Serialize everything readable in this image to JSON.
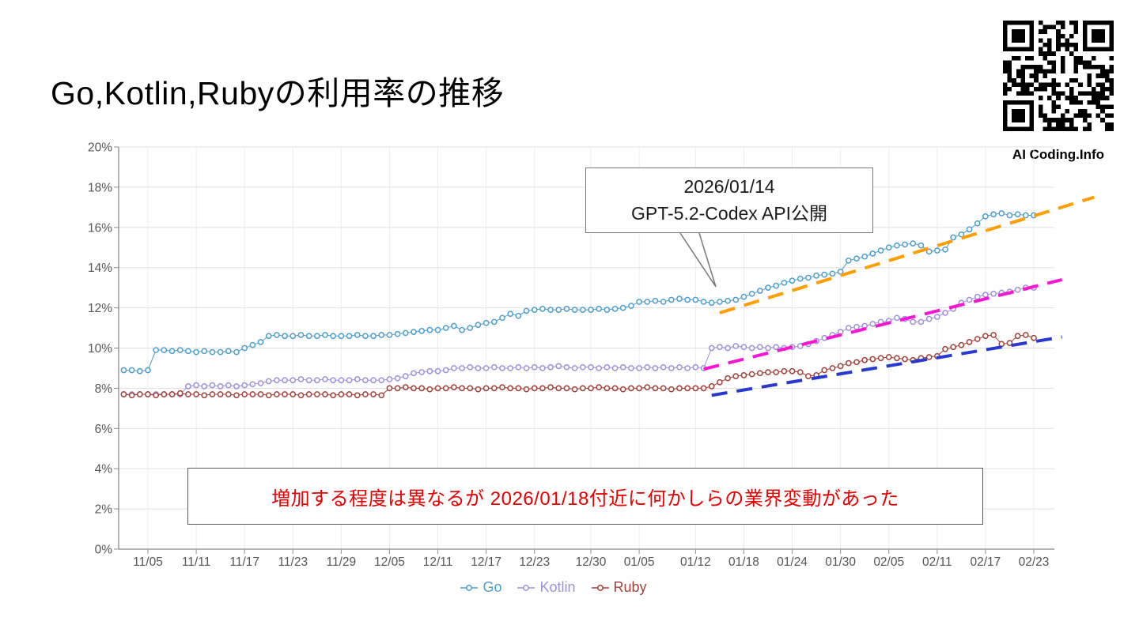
{
  "slide": {
    "title": "Go,Kotlin,Rubyの利用率の推移",
    "qr_caption": "AI Coding.Info"
  },
  "callout": {
    "line1": "2026/01/14",
    "line2": "GPT-5.2-Codex API公開"
  },
  "banner": {
    "text": "増加する程度は異なるが 2026/01/18付近に何かしらの業界変動があった",
    "color": "#e60000"
  },
  "chart_data": {
    "type": "line",
    "title": "",
    "xlabel": "",
    "ylabel": "",
    "ylim": [
      0,
      20
    ],
    "y_ticks": [
      0,
      2,
      4,
      6,
      8,
      10,
      12,
      14,
      16,
      18,
      20
    ],
    "y_tick_suffix": "%",
    "grid": true,
    "legend_position": "bottom",
    "x_unit": "day-index (day 0 = 11/02)",
    "x_tick_labels": [
      "11/05",
      "11/11",
      "11/17",
      "11/23",
      "11/29",
      "12/05",
      "12/11",
      "12/17",
      "12/23",
      "12/30",
      "01/05",
      "01/12",
      "01/18",
      "01/24",
      "01/30",
      "02/05",
      "02/11",
      "02/17",
      "02/23"
    ],
    "x_tick_days": [
      3,
      9,
      15,
      21,
      27,
      33,
      39,
      45,
      51,
      58,
      64,
      71,
      77,
      83,
      89,
      95,
      101,
      107,
      113
    ],
    "series": [
      {
        "name": "Go",
        "color": "#4E9ECE",
        "values": [
          8.9,
          8.9,
          8.85,
          8.9,
          9.9,
          9.9,
          9.85,
          9.9,
          9.85,
          9.8,
          9.85,
          9.8,
          9.8,
          9.85,
          9.8,
          10.0,
          10.15,
          10.3,
          10.6,
          10.65,
          10.6,
          10.6,
          10.65,
          10.6,
          10.6,
          10.65,
          10.6,
          10.6,
          10.6,
          10.65,
          10.6,
          10.6,
          10.65,
          10.65,
          10.7,
          10.75,
          10.8,
          10.85,
          10.9,
          10.9,
          11.0,
          11.1,
          10.9,
          11.0,
          11.15,
          11.25,
          11.3,
          11.5,
          11.7,
          11.6,
          11.85,
          11.9,
          11.95,
          11.9,
          11.9,
          11.95,
          11.9,
          11.9,
          11.9,
          11.95,
          11.9,
          11.95,
          12.0,
          12.1,
          12.3,
          12.3,
          12.35,
          12.3,
          12.4,
          12.45,
          12.4,
          12.4,
          12.3,
          12.25,
          12.3,
          12.35,
          12.4,
          12.55,
          12.7,
          12.85,
          13.0,
          13.1,
          13.25,
          13.35,
          13.45,
          13.5,
          13.6,
          13.65,
          13.7,
          13.8,
          14.35,
          14.45,
          14.55,
          14.7,
          14.85,
          15.0,
          15.1,
          15.15,
          15.2,
          15.1,
          14.8,
          14.85,
          14.9,
          15.5,
          15.65,
          15.9,
          16.2,
          16.55,
          16.65,
          16.7,
          16.6,
          16.65,
          16.6,
          16.6
        ]
      },
      {
        "name": "Kotlin",
        "color": "#A08FDC",
        "values": [
          7.7,
          7.7,
          7.7,
          7.7,
          7.7,
          7.7,
          7.7,
          7.7,
          8.1,
          8.15,
          8.1,
          8.15,
          8.1,
          8.15,
          8.1,
          8.15,
          8.2,
          8.25,
          8.35,
          8.4,
          8.4,
          8.4,
          8.45,
          8.4,
          8.4,
          8.45,
          8.4,
          8.4,
          8.4,
          8.45,
          8.4,
          8.4,
          8.4,
          8.45,
          8.5,
          8.6,
          8.75,
          8.8,
          8.85,
          8.85,
          8.9,
          9.0,
          9.0,
          9.05,
          9.0,
          9.0,
          9.05,
          9.0,
          9.0,
          9.05,
          9.0,
          9.05,
          9.0,
          9.05,
          9.1,
          9.05,
          9.0,
          9.05,
          9.05,
          9.0,
          9.05,
          9.0,
          9.05,
          9.0,
          9.0,
          9.05,
          9.0,
          9.05,
          9.0,
          9.05,
          9.0,
          9.05,
          9.0,
          10.0,
          10.05,
          10.0,
          10.1,
          10.05,
          10.0,
          10.05,
          10.0,
          10.05,
          10.0,
          10.05,
          10.1,
          10.2,
          10.35,
          10.5,
          10.65,
          10.8,
          11.0,
          11.05,
          11.1,
          11.2,
          11.3,
          11.35,
          11.5,
          11.45,
          11.3,
          11.3,
          11.45,
          11.55,
          11.75,
          11.95,
          12.25,
          12.4,
          12.55,
          12.65,
          12.7,
          12.75,
          12.8,
          12.9,
          13.0,
          13.0
        ]
      },
      {
        "name": "Ruby",
        "color": "#A04038",
        "values": [
          7.7,
          7.65,
          7.7,
          7.7,
          7.65,
          7.7,
          7.7,
          7.75,
          7.7,
          7.7,
          7.65,
          7.7,
          7.7,
          7.7,
          7.65,
          7.7,
          7.7,
          7.7,
          7.65,
          7.7,
          7.7,
          7.7,
          7.65,
          7.7,
          7.7,
          7.7,
          7.65,
          7.7,
          7.7,
          7.65,
          7.7,
          7.7,
          7.65,
          8.0,
          8.0,
          8.05,
          8.0,
          8.0,
          7.95,
          8.0,
          8.0,
          8.05,
          8.0,
          8.0,
          7.95,
          8.0,
          8.0,
          8.05,
          8.0,
          8.0,
          7.95,
          8.0,
          8.0,
          8.05,
          8.0,
          8.0,
          7.95,
          8.0,
          8.0,
          8.05,
          8.0,
          8.0,
          7.95,
          8.0,
          8.0,
          8.05,
          8.0,
          8.0,
          7.95,
          8.0,
          8.0,
          8.0,
          8.0,
          8.1,
          8.3,
          8.5,
          8.6,
          8.65,
          8.7,
          8.75,
          8.8,
          8.8,
          8.85,
          8.85,
          8.8,
          8.6,
          8.65,
          8.9,
          9.0,
          9.1,
          9.25,
          9.3,
          9.4,
          9.45,
          9.5,
          9.55,
          9.5,
          9.45,
          9.4,
          9.5,
          9.55,
          9.6,
          9.95,
          10.05,
          10.15,
          10.3,
          10.45,
          10.6,
          10.65,
          10.2,
          10.25,
          10.6,
          10.65,
          10.5
        ]
      }
    ],
    "trend_lines": [
      {
        "name": "go-trend-line",
        "color": "#FF9E00",
        "x1": 74,
        "y1": 11.75,
        "x2": 120.5,
        "y2": 17.5
      },
      {
        "name": "kotlin-trend-line",
        "color": "#F716D2",
        "x1": 72,
        "y1": 8.95,
        "x2": 116.5,
        "y2": 13.4
      },
      {
        "name": "ruby-trend-line",
        "color": "#2839CF",
        "x1": 73,
        "y1": 7.65,
        "x2": 116.5,
        "y2": 10.55
      }
    ]
  }
}
